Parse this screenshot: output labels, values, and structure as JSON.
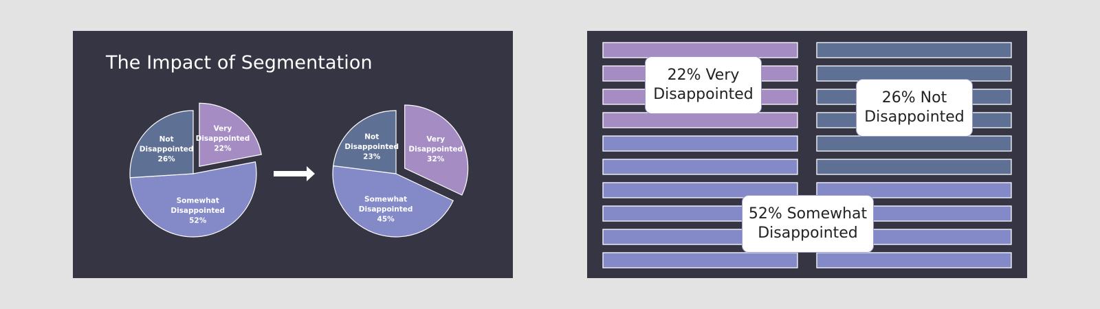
{
  "left_slide": {
    "title": "The Impact of Segmentation"
  },
  "chart_data": [
    {
      "type": "pie",
      "title": "",
      "slices": [
        {
          "label": [
            "Very",
            "Disappointed",
            "22%"
          ],
          "value": 22,
          "color": "#a58dc4",
          "exploded": true
        },
        {
          "label": [
            "Somewhat",
            "Disappointed",
            "52%"
          ],
          "value": 52,
          "color": "#8489c8",
          "exploded": false
        },
        {
          "label": [
            "Not",
            "Disappointed",
            "26%"
          ],
          "value": 26,
          "color": "#5e7094",
          "exploded": false
        }
      ]
    },
    {
      "type": "pie",
      "title": "",
      "slices": [
        {
          "label": [
            "Very",
            "Disappointed",
            "32%"
          ],
          "value": 32,
          "color": "#a58dc4",
          "exploded": true
        },
        {
          "label": [
            "Somewhat",
            "Disappointed",
            "45%"
          ],
          "value": 45,
          "color": "#8489c8",
          "exploded": false
        },
        {
          "label": [
            "Not",
            "Disappointed",
            "23%"
          ],
          "value": 23,
          "color": "#5e7094",
          "exploded": false
        }
      ]
    }
  ],
  "right_slide": {
    "bar_colors": {
      "very": "#a58dc4",
      "somewhat": "#8489c8",
      "not": "#5e7094"
    },
    "columns": [
      [
        "very",
        "very",
        "very",
        "very",
        "somewhat",
        "somewhat",
        "somewhat",
        "somewhat",
        "somewhat",
        "somewhat"
      ],
      [
        "not",
        "not",
        "not",
        "not",
        "not",
        "not",
        "somewhat",
        "somewhat",
        "somewhat",
        "somewhat"
      ]
    ],
    "callouts": {
      "very": [
        "22% Very",
        "Disappointed"
      ],
      "not": [
        "26% Not",
        "Disappointed"
      ],
      "somewhat": [
        "52% Somewhat",
        "Disappointed"
      ]
    }
  },
  "colors": {
    "slide_background": "#363544",
    "page_background": "#e3e3e3",
    "arrow": "#ffffff"
  }
}
